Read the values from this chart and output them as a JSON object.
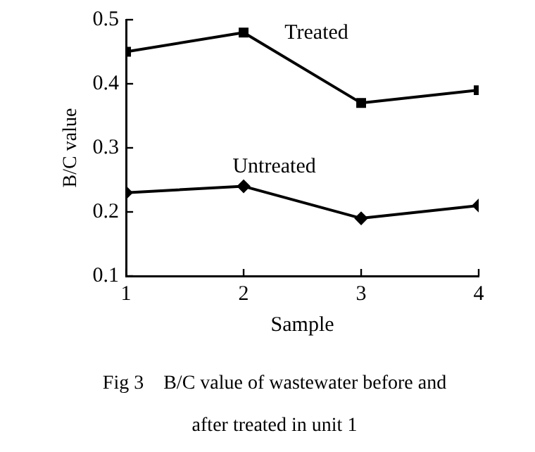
{
  "chart_data": {
    "type": "line",
    "xlabel": "Sample",
    "ylabel": "B/C value",
    "x": [
      1,
      2,
      3,
      4
    ],
    "xlim": [
      1,
      4
    ],
    "xticks": [
      1,
      2,
      3,
      4
    ],
    "ylim": [
      0.1,
      0.5
    ],
    "yticks": [
      0.1,
      0.2,
      0.3,
      0.4,
      0.5
    ],
    "grid": false,
    "legend": false,
    "line_style": "solid",
    "series": [
      {
        "name": "Treated",
        "color": "#000000",
        "marker": "square",
        "values": [
          0.45,
          0.48,
          0.37,
          0.39
        ]
      },
      {
        "name": "Untreated",
        "color": "#000000",
        "marker": "diamond",
        "values": [
          0.23,
          0.24,
          0.19,
          0.21
        ]
      }
    ],
    "annotations": [
      "Fig 3　B/C value of wastewater before and after treated in unit 1"
    ]
  }
}
